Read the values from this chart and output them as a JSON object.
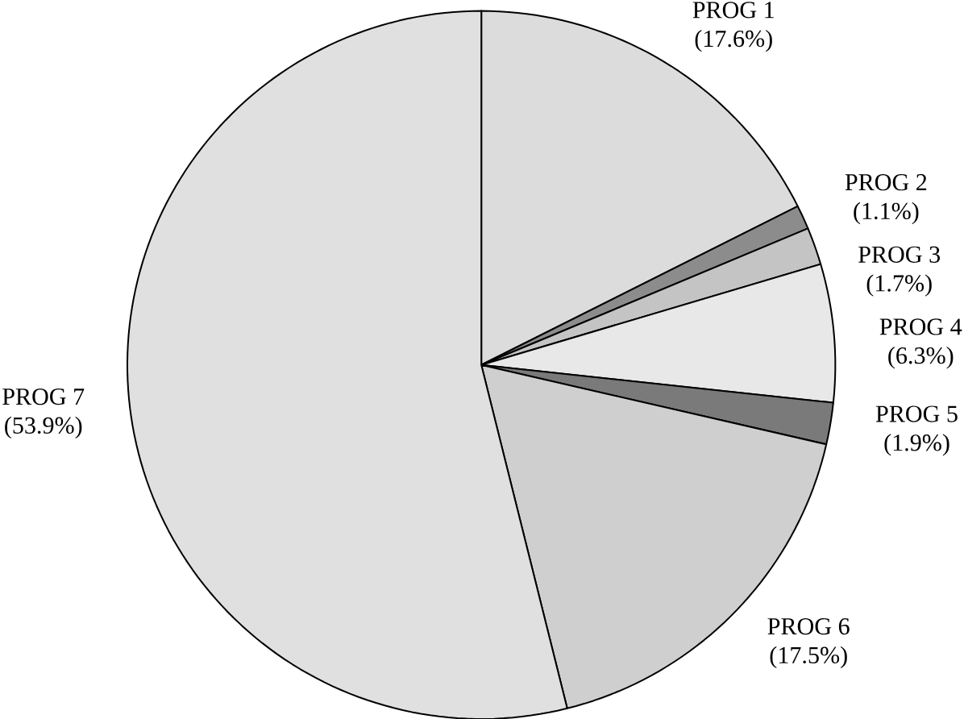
{
  "chart_data": {
    "type": "pie",
    "categories": [
      "PROG 1",
      "PROG 2",
      "PROG 3",
      "PROG 4",
      "PROG 5",
      "PROG 6",
      "PROG 7"
    ],
    "values": [
      17.6,
      1.1,
      1.7,
      6.3,
      1.9,
      17.5,
      53.9
    ],
    "value_labels": [
      "(17.6%)",
      "(1.1%)",
      "(1.7%)",
      "(6.3%)",
      "(1.9%)",
      "(17.5%)",
      "(53.9%)"
    ],
    "colors": [
      "#dcdcdc",
      "#8c8c8c",
      "#c4c4c4",
      "#e8e8e8",
      "#7a7a7a",
      "#cfcfcf",
      "#e0e0e0"
    ]
  }
}
